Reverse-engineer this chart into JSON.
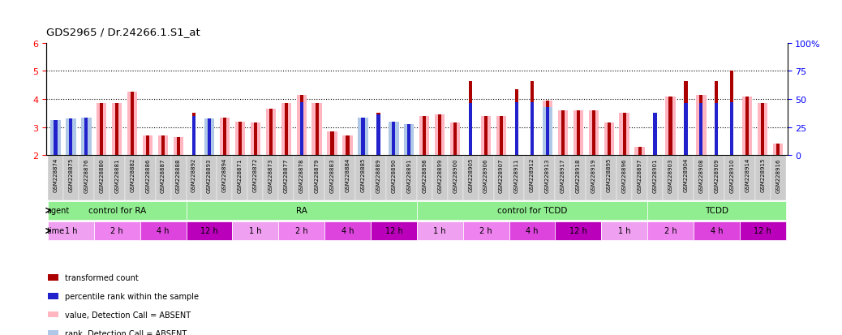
{
  "title": "GDS2965 / Dr.24266.1.S1_at",
  "samples": [
    "GSM228874",
    "GSM228875",
    "GSM228876",
    "GSM228880",
    "GSM228881",
    "GSM228882",
    "GSM228886",
    "GSM228887",
    "GSM228888",
    "GSM228892",
    "GSM228893",
    "GSM228894",
    "GSM228871",
    "GSM228872",
    "GSM228873",
    "GSM228877",
    "GSM228878",
    "GSM228879",
    "GSM228883",
    "GSM228884",
    "GSM228885",
    "GSM228889",
    "GSM228890",
    "GSM228891",
    "GSM228898",
    "GSM228899",
    "GSM228900",
    "GSM228905",
    "GSM228906",
    "GSM228907",
    "GSM228911",
    "GSM228912",
    "GSM228913",
    "GSM228917",
    "GSM228918",
    "GSM228919",
    "GSM228895",
    "GSM228896",
    "GSM228897",
    "GSM228901",
    "GSM228903",
    "GSM228904",
    "GSM228908",
    "GSM228909",
    "GSM228910",
    "GSM228914",
    "GSM228915",
    "GSM228916"
  ],
  "red_values": [
    3.1,
    3.25,
    3.3,
    3.85,
    3.85,
    4.25,
    2.7,
    2.7,
    2.65,
    3.5,
    3.25,
    3.35,
    3.2,
    3.15,
    3.65,
    3.85,
    4.15,
    3.85,
    2.85,
    2.7,
    2.7,
    3.5,
    3.15,
    3.0,
    3.4,
    3.45,
    3.15,
    4.65,
    3.4,
    3.4,
    4.35,
    4.65,
    3.95,
    3.6,
    3.6,
    3.6,
    3.15,
    3.5,
    2.3,
    3.4,
    4.1,
    4.65,
    4.15,
    4.65,
    5.0,
    4.1,
    3.85,
    2.4
  ],
  "blue_values": [
    3.25,
    3.3,
    3.35,
    0,
    0,
    0,
    0,
    0,
    0,
    3.4,
    3.3,
    0,
    0,
    0,
    0,
    0,
    3.9,
    0,
    0,
    0,
    3.35,
    3.45,
    3.2,
    3.1,
    0,
    0,
    0,
    3.85,
    0,
    0,
    3.9,
    3.9,
    3.7,
    0,
    0,
    0,
    0,
    0,
    0,
    3.5,
    0,
    3.85,
    3.85,
    3.85,
    3.9,
    0,
    0,
    0
  ],
  "pink_values": [
    3.1,
    3.25,
    3.3,
    3.85,
    3.85,
    4.25,
    2.7,
    2.7,
    2.65,
    0,
    3.25,
    3.35,
    3.2,
    3.15,
    3.65,
    3.85,
    4.15,
    3.85,
    2.85,
    2.7,
    2.7,
    0,
    3.15,
    3.0,
    3.4,
    3.45,
    3.15,
    0,
    3.4,
    3.4,
    0,
    0,
    3.95,
    3.6,
    3.6,
    3.6,
    3.15,
    3.5,
    2.3,
    0,
    4.1,
    0,
    4.15,
    0,
    0,
    4.1,
    3.85,
    2.4
  ],
  "lblue_values": [
    3.25,
    3.3,
    3.35,
    0,
    0,
    0,
    0,
    0,
    0,
    0,
    3.3,
    0,
    0,
    0,
    0,
    0,
    0,
    0,
    0,
    0,
    3.35,
    0,
    3.2,
    3.1,
    0,
    0,
    0,
    0,
    0,
    0,
    0,
    0,
    3.7,
    0,
    0,
    0,
    0,
    0,
    0,
    0,
    0,
    0,
    0,
    0,
    0,
    0,
    0,
    0
  ],
  "ylim_left": [
    2,
    6
  ],
  "ylim_right": [
    0,
    100
  ],
  "yticks_left": [
    2,
    3,
    4,
    5,
    6
  ],
  "yticks_right": [
    0,
    25,
    50,
    75,
    100
  ],
  "dotted_lines": [
    3,
    4,
    5
  ],
  "agent_defs": [
    {
      "label": "control for RA",
      "start": 0,
      "end": 9
    },
    {
      "label": "RA",
      "start": 9,
      "end": 24
    },
    {
      "label": "control for TCDD",
      "start": 24,
      "end": 39
    },
    {
      "label": "TCDD",
      "start": 39,
      "end": 48
    }
  ],
  "time_defs": [
    {
      "label": "1 h",
      "start": 0,
      "end": 3
    },
    {
      "label": "2 h",
      "start": 3,
      "end": 6
    },
    {
      "label": "4 h",
      "start": 6,
      "end": 9
    },
    {
      "label": "12 h",
      "start": 9,
      "end": 12
    },
    {
      "label": "1 h",
      "start": 12,
      "end": 15
    },
    {
      "label": "2 h",
      "start": 15,
      "end": 18
    },
    {
      "label": "4 h",
      "start": 18,
      "end": 21
    },
    {
      "label": "12 h",
      "start": 21,
      "end": 24
    },
    {
      "label": "1 h",
      "start": 24,
      "end": 27
    },
    {
      "label": "2 h",
      "start": 27,
      "end": 30
    },
    {
      "label": "4 h",
      "start": 30,
      "end": 33
    },
    {
      "label": "12 h",
      "start": 33,
      "end": 36
    },
    {
      "label": "1 h",
      "start": 36,
      "end": 39
    },
    {
      "label": "2 h",
      "start": 39,
      "end": 42
    },
    {
      "label": "4 h",
      "start": 42,
      "end": 45
    },
    {
      "label": "12 h",
      "start": 45,
      "end": 48
    }
  ],
  "time_colors": [
    "#F0A0F0",
    "#EE82EE",
    "#DD44DD",
    "#BB00BB"
  ],
  "agent_color": "#90EE90",
  "red_color": "#AA0000",
  "blue_color": "#2222CC",
  "pink_color": "#FFB6C1",
  "lblue_color": "#B0C8E8",
  "bg_color": "#FFFFFF",
  "tick_bg": "#D8D8D8"
}
